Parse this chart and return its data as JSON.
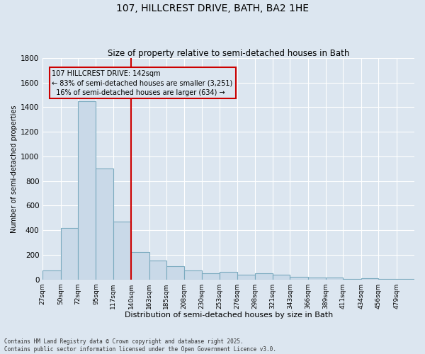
{
  "title": "107, HILLCREST DRIVE, BATH, BA2 1HE",
  "subtitle": "Size of property relative to semi-detached houses in Bath",
  "xlabel": "Distribution of semi-detached houses by size in Bath",
  "ylabel": "Number of semi-detached properties",
  "footnote": "Contains HM Land Registry data © Crown copyright and database right 2025.\nContains public sector information licensed under the Open Government Licence v3.0.",
  "bar_color": "#c9d9e8",
  "bar_edge_color": "#7aaabf",
  "background_color": "#dce6f0",
  "grid_color": "#ffffff",
  "vline_x": 140,
  "vline_color": "#cc0000",
  "annotation_line1": "107 HILLCREST DRIVE: 142sqm",
  "annotation_line2": "← 83% of semi-detached houses are smaller (3,251)",
  "annotation_line3": "  16% of semi-detached houses are larger (634) →",
  "annotation_box_color": "#cc0000",
  "bin_labels": [
    "27sqm",
    "50sqm",
    "72sqm",
    "95sqm",
    "117sqm",
    "140sqm",
    "163sqm",
    "185sqm",
    "208sqm",
    "230sqm",
    "253sqm",
    "276sqm",
    "298sqm",
    "321sqm",
    "343sqm",
    "366sqm",
    "389sqm",
    "411sqm",
    "434sqm",
    "456sqm",
    "479sqm"
  ],
  "bin_starts": [
    27,
    50,
    72,
    95,
    117,
    140,
    163,
    185,
    208,
    230,
    253,
    276,
    298,
    321,
    343,
    366,
    389,
    411,
    434,
    456,
    479
  ],
  "bar_heights": [
    75,
    420,
    1450,
    900,
    470,
    225,
    155,
    105,
    70,
    50,
    60,
    40,
    50,
    40,
    20,
    15,
    15,
    5,
    10,
    5,
    5
  ],
  "ylim": [
    0,
    1800
  ],
  "yticks": [
    0,
    200,
    400,
    600,
    800,
    1000,
    1200,
    1400,
    1600,
    1800
  ]
}
